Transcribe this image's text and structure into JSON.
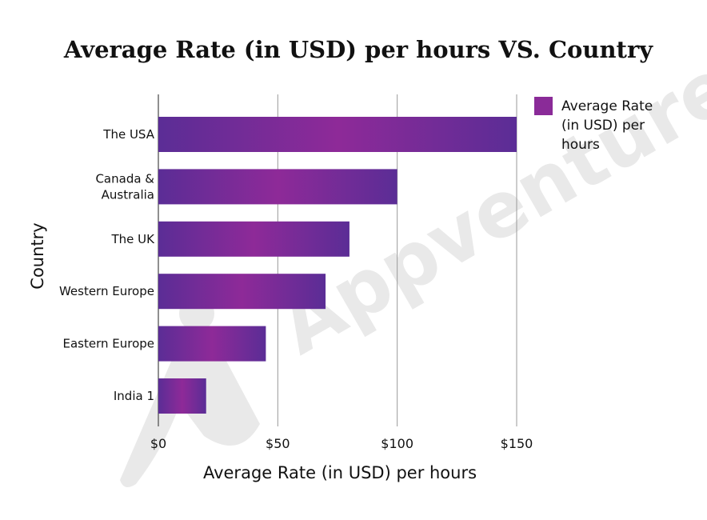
{
  "chart_data": {
    "type": "bar",
    "orientation": "horizontal",
    "title": "Average Rate (in USD) per hours VS. Country",
    "xlabel": "Average Rate (in USD) per hours",
    "ylabel": "Country",
    "categories": [
      "The USA",
      "Canada & Australia",
      "The UK",
      "Western Europe",
      "Eastern Europe",
      "India 1"
    ],
    "category_lines": [
      [
        "The USA"
      ],
      [
        "Canada &",
        "Australia"
      ],
      [
        "The UK"
      ],
      [
        "Western Europe"
      ],
      [
        "Eastern Europe"
      ],
      [
        "India 1"
      ]
    ],
    "series": [
      {
        "name": "Average Rate (in USD) per hours",
        "values": [
          150,
          100,
          80,
          70,
          45,
          20
        ]
      }
    ],
    "xlim": [
      0,
      150
    ],
    "xticks": [
      0,
      50,
      100,
      150
    ],
    "xtick_labels": [
      "$0",
      "$50",
      "$100",
      "$150"
    ],
    "grid": "vertical",
    "legend": {
      "position": "top-right",
      "lines": [
        "Average Rate",
        "(in USD) per",
        "hours"
      ]
    },
    "colors": {
      "bar_edge": "#5b2d96",
      "bar_center": "#8e2a98",
      "grid": "#999999",
      "watermark": "#e9e9e9"
    },
    "watermark": "Appventurez"
  }
}
